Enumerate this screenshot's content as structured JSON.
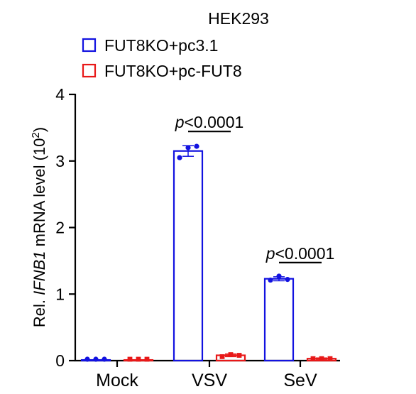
{
  "chart_data": {
    "type": "bar",
    "title": "HEK293",
    "ylabel_prefix": "Rel. ",
    "ylabel_gene": "IFNB1",
    "ylabel_mid": " mRNA level (10",
    "ylabel_exp": "2",
    "ylabel_suffix": ")",
    "ylim": [
      0,
      4
    ],
    "yticks": [
      0,
      1,
      2,
      3,
      4
    ],
    "categories": [
      "Mock",
      "VSV",
      "SeV"
    ],
    "series": [
      {
        "name": "FUT8KO+pc3.1",
        "color": "#1212e0",
        "values": [
          0.01,
          3.15,
          1.23
        ],
        "error": [
          0.0,
          0.08,
          0.03
        ],
        "points": [
          [
            0.01,
            0.01,
            0.01
          ],
          [
            3.05,
            3.2,
            3.22
          ],
          [
            1.21,
            1.27,
            1.22
          ]
        ]
      },
      {
        "name": "FUT8KO+pc-FUT8",
        "color": "#e81818",
        "values": [
          0.01,
          0.08,
          0.03
        ],
        "error": [
          0.0,
          0.02,
          0.01
        ],
        "points": [
          [
            0.01,
            0.01,
            0.01
          ],
          [
            0.06,
            0.09,
            0.08
          ],
          [
            0.03,
            0.03,
            0.03
          ]
        ]
      }
    ],
    "annotations": [
      {
        "p_letter": "p",
        "text": "<0.0001",
        "category": "VSV"
      },
      {
        "p_letter": "p",
        "text": "<0.0001",
        "category": "SeV"
      }
    ]
  }
}
